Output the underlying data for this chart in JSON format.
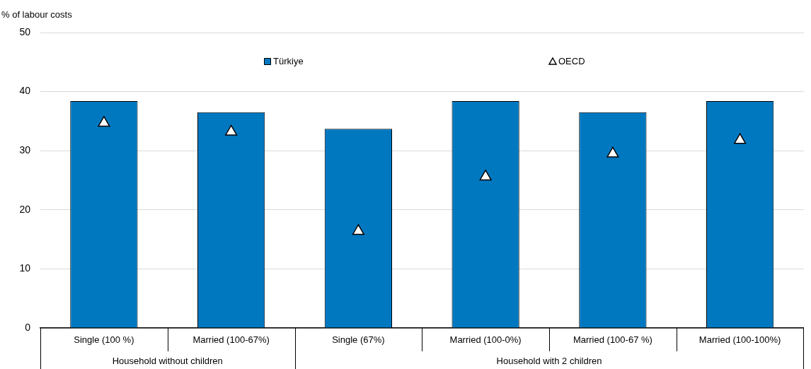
{
  "chart_data": {
    "type": "bar",
    "ylabel": "% of labour costs",
    "categories": [
      "Single (100 %)",
      "Married (100-67%)",
      "Single (67%)",
      "Married (100-0%)",
      "Married (100-67 %)",
      "Married (100-100%)"
    ],
    "series": [
      {
        "name": "Türkiye",
        "color": "#0078c0",
        "values": [
          38.4,
          36.5,
          33.7,
          38.4,
          36.5,
          38.4
        ]
      },
      {
        "name": "OECD",
        "type": "scatter",
        "marker": "triangle",
        "color": "#ffffff",
        "x": [
          "Single (100 %)",
          "Married (100-67%)",
          "Single (67%)",
          "Married (100-0%)",
          "Married (100-67 %)",
          "Married (100-100%)"
        ],
        "values": [
          34.7,
          33.2,
          16.4,
          25.6,
          29.5,
          31.8
        ]
      }
    ],
    "annotations": [
      "Household without children",
      "Household with 2 children"
    ],
    "ylim": [
      0,
      50
    ],
    "yticks": [
      0,
      10,
      20,
      30,
      40,
      50
    ],
    "grid": "y",
    "legend": "top"
  }
}
